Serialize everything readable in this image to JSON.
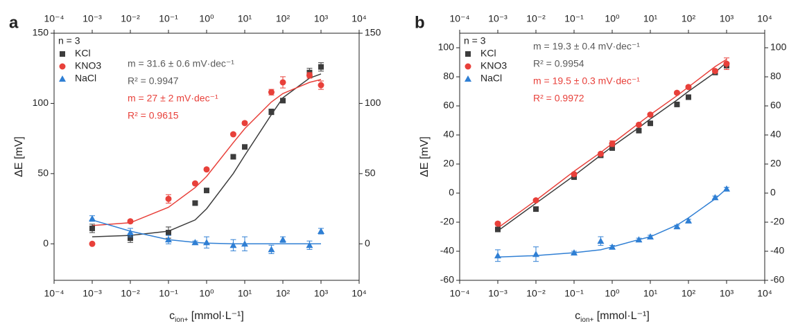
{
  "chart_data": [
    {
      "type": "scatter",
      "panel_label": "a",
      "x_scale": "log",
      "x_label": {
        "main": "c",
        "sub": "ion+",
        "unit": " [mmol·L⁻¹]"
      },
      "y_label": "ΔE [mV]",
      "xlim": [
        0.0001,
        10000
      ],
      "xticks": [
        {
          "value": 0.0001,
          "label": "10⁻⁴"
        },
        {
          "value": 0.001,
          "label": "10⁻³"
        },
        {
          "value": 0.01,
          "label": "10⁻²"
        },
        {
          "value": 0.1,
          "label": "10⁻¹"
        },
        {
          "value": 1,
          "label": "10⁰"
        },
        {
          "value": 10,
          "label": "10¹"
        },
        {
          "value": 100,
          "label": "10²"
        },
        {
          "value": 1000,
          "label": "10³"
        },
        {
          "value": 10000,
          "label": "10⁴"
        }
      ],
      "ylim": [
        -26,
        150
      ],
      "yticks": [
        0,
        50,
        100,
        150
      ],
      "legend_title": "n = 3",
      "legend": "top-left",
      "x": [
        0.001,
        0.01,
        0.1,
        0.5,
        1,
        5,
        10,
        50,
        100,
        500,
        1000
      ],
      "series": [
        {
          "name": "KCl",
          "color": "#3c3c3c",
          "marker": "square",
          "values": [
            11,
            4,
            8,
            29,
            38,
            62,
            69,
            94,
            102,
            122,
            126
          ],
          "errors": [
            3,
            3,
            4,
            1,
            1,
            1,
            1,
            2,
            1,
            3,
            3
          ],
          "fit_values": [
            5,
            6,
            9,
            17,
            25,
            50,
            63,
            92,
            104,
            118,
            121
          ]
        },
        {
          "name": "KNO3",
          "color": "#e8403a",
          "marker": "circle",
          "values": [
            0,
            16,
            32,
            43,
            53,
            78,
            86,
            108,
            115,
            120,
            113
          ],
          "errors": [
            0,
            1,
            3,
            1,
            1,
            1,
            1,
            2,
            4,
            2,
            3
          ],
          "fit_values": [
            13,
            15,
            26,
            40,
            48,
            72,
            82,
            101,
            107,
            115,
            117
          ]
        },
        {
          "name": "NaCl",
          "color": "#2f7fd4",
          "marker": "triangle",
          "values": [
            18,
            8,
            3,
            1,
            1,
            -1,
            0,
            -4,
            3,
            -1,
            9
          ],
          "errors": [
            2,
            3,
            3,
            1,
            4,
            4,
            5,
            3,
            2,
            3,
            2
          ],
          "fit_values": [
            17,
            9,
            3,
            1,
            0.5,
            0,
            0,
            0,
            0,
            0,
            0
          ]
        }
      ],
      "annotations": [
        {
          "text": "m = 31.6 ± 0.6 mV·dec⁻¹",
          "color": "#5a5a5a"
        },
        {
          "text": "R² = 0.9947",
          "color": "#5a5a5a"
        },
        {
          "text": "m = 27 ± 2 mV·dec⁻¹",
          "color": "#e8403a"
        },
        {
          "text": "R² = 0.9615",
          "color": "#e8403a"
        }
      ]
    },
    {
      "type": "scatter",
      "panel_label": "b",
      "x_scale": "log",
      "x_label": {
        "main": "c",
        "sub": "ion+",
        "unit": " [mmol·L⁻¹]"
      },
      "y_label": "ΔE [mV]",
      "xlim": [
        0.0001,
        10000
      ],
      "xticks": [
        {
          "value": 0.0001,
          "label": "10⁻⁴"
        },
        {
          "value": 0.001,
          "label": "10⁻³"
        },
        {
          "value": 0.01,
          "label": "10⁻²"
        },
        {
          "value": 0.1,
          "label": "10⁻¹"
        },
        {
          "value": 1,
          "label": "10⁰"
        },
        {
          "value": 10,
          "label": "10¹"
        },
        {
          "value": 100,
          "label": "10²"
        },
        {
          "value": 1000,
          "label": "10³"
        },
        {
          "value": 10000,
          "label": "10⁴"
        }
      ],
      "ylim": [
        -60,
        110
      ],
      "yticks": [
        -60,
        -40,
        -20,
        0,
        20,
        40,
        60,
        80,
        100
      ],
      "legend_title": "n = 3",
      "legend": "top-left",
      "x": [
        0.001,
        0.01,
        0.1,
        0.5,
        1,
        5,
        10,
        50,
        100,
        500,
        1000
      ],
      "series": [
        {
          "name": "KCl",
          "color": "#3c3c3c",
          "marker": "square",
          "values": [
            -25,
            -11,
            11,
            26,
            31,
            43,
            48,
            61,
            66,
            83,
            88
          ],
          "errors": [
            1,
            1,
            1,
            1,
            1,
            1,
            1,
            1,
            1,
            1,
            2
          ],
          "fit_values": [
            -26,
            -7,
            12,
            26,
            32,
            45,
            51,
            64,
            70,
            83,
            90
          ]
        },
        {
          "name": "KNO3",
          "color": "#e8403a",
          "marker": "circle",
          "values": [
            -21,
            -5,
            13,
            27,
            34,
            47,
            54,
            69,
            73,
            84,
            89
          ],
          "errors": [
            1,
            1,
            1,
            1,
            2,
            1,
            1,
            1,
            1,
            1,
            4
          ],
          "fit_values": [
            -24,
            -5,
            15,
            28,
            34,
            48,
            54,
            67,
            73,
            87,
            92
          ]
        },
        {
          "name": "NaCl",
          "color": "#2f7fd4",
          "marker": "triangle",
          "values": [
            -43,
            -42,
            -41,
            -33,
            -37,
            -32,
            -30,
            -23,
            -19,
            -3,
            3
          ],
          "errors": [
            4,
            5,
            1,
            3,
            1,
            1,
            1,
            1,
            1,
            1,
            1
          ],
          "fit_values": [
            -44,
            -43,
            -41,
            -39,
            -37,
            -32,
            -30,
            -22,
            -17,
            -4,
            3
          ]
        }
      ],
      "annotations": [
        {
          "text": "m = 19.3 ± 0.4 mV·dec⁻¹",
          "color": "#5a5a5a"
        },
        {
          "text": "R² = 0.9954",
          "color": "#5a5a5a"
        },
        {
          "text": "m = 19.5 ± 0.3 mV·dec⁻¹",
          "color": "#e8403a"
        },
        {
          "text": "R² = 0.9972",
          "color": "#e8403a"
        }
      ]
    }
  ]
}
